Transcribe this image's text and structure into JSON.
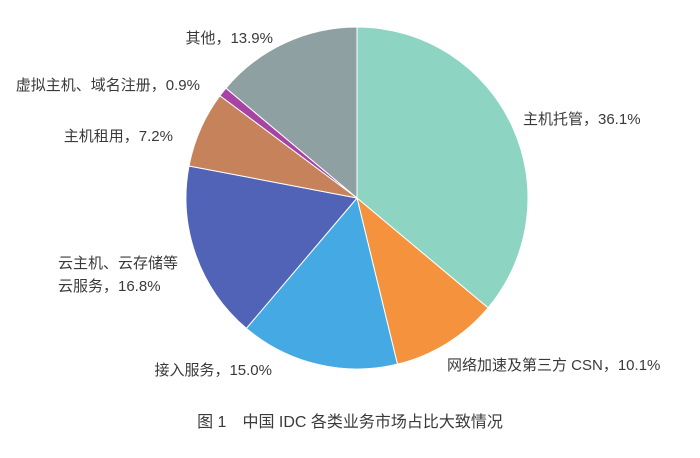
{
  "figure": {
    "caption": "图 1　中国 IDC 各类业务市场占比大致情况"
  },
  "chart_data": {
    "type": "pie",
    "title": "中国 IDC 各类业务市场占比大致情况",
    "start_angle_deg": 0,
    "direction": "clockwise",
    "legend_position": "none",
    "label_style": "outside-category-and-percent",
    "background_color": "#ffffff",
    "text_color": "#3a3a3a",
    "slices": [
      {
        "label": "主机托管",
        "value": 36.1,
        "unit": "%",
        "color": "#8dd4c2",
        "display": "主机托管，36.1%"
      },
      {
        "label": "网络加速及第三方 CSN",
        "value": 10.1,
        "unit": "%",
        "color": "#f5923e",
        "display": "网络加速及第三方 CSN，10.1%"
      },
      {
        "label": "接入服务",
        "value": 15.0,
        "unit": "%",
        "color": "#45a9e4",
        "display": "接入服务，15.0%"
      },
      {
        "label": "云主机、云存储等云服务",
        "value": 16.8,
        "unit": "%",
        "color": "#5163b6",
        "display": "云主机、云存储等\n云服务，16.8%"
      },
      {
        "label": "主机租用",
        "value": 7.2,
        "unit": "%",
        "color": "#c6835b",
        "display": "主机租用，7.2%"
      },
      {
        "label": "虚拟主机、域名注册",
        "value": 0.9,
        "unit": "%",
        "color": "#a843a6",
        "display": "虚拟主机、域名注册，0.9%"
      },
      {
        "label": "其他",
        "value": 13.9,
        "unit": "%",
        "color": "#8ea0a2",
        "display": "其他，13.9%"
      }
    ]
  }
}
